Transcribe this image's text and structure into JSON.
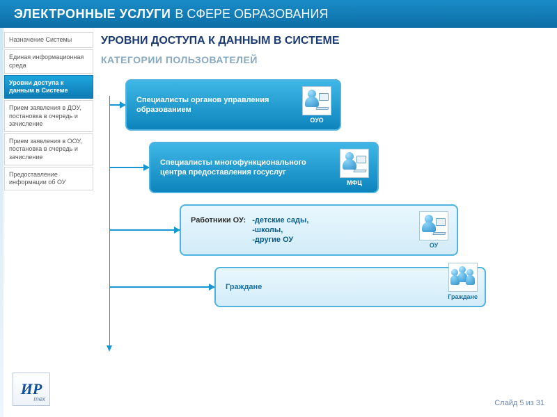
{
  "header": {
    "title_bold": "ЭЛЕКТРОННЫЕ УСЛУГИ",
    "title_light": "В СФЕРЕ ОБРАЗОВАНИЯ"
  },
  "sidebar": {
    "items": [
      {
        "label": "Назначение Системы"
      },
      {
        "label": "Единая информационная среда"
      },
      {
        "label": "Уровни доступа к данным в Системе"
      },
      {
        "label": "Прием заявления в ДОУ, постановка в очередь и зачисление"
      },
      {
        "label": "Прием заявления в ООУ, постановка в очередь и зачисление"
      },
      {
        "label": "Предоставление информации об ОУ"
      }
    ],
    "active_index": 2
  },
  "main": {
    "title": "УРОВНИ ДОСТУПА К ДАННЫМ В СИСТЕМЕ",
    "subtitle": "КАТЕГОРИИ ПОЛЬЗОВАТЕЛЕЙ"
  },
  "cards": [
    {
      "text": "Специалисты органов управления образованием",
      "tag": "ОУО",
      "style": "dark",
      "icon": "person-pc"
    },
    {
      "text": "Специалисты многофункционального центра предоставления госуслуг",
      "tag": "МФЦ",
      "style": "dark",
      "icon": "person-pc"
    },
    {
      "text": "Работники ОУ:",
      "list": "-детские сады,\n-школы,\n-другие ОУ",
      "tag": "ОУ",
      "style": "light",
      "icon": "person-pc"
    },
    {
      "text": "Граждане",
      "tag": "Граждане",
      "style": "light",
      "icon": "group"
    }
  ],
  "footer": {
    "logo_main": "ИР",
    "logo_sub": "тех",
    "slide": "Слайд 5 из 31"
  },
  "colors": {
    "header_grad_top": "#1a8cc8",
    "header_grad_bot": "#0d6ea5",
    "accent": "#1497d2",
    "card_border": "#4fb2df",
    "dark_grad_top": "#3fb7e6",
    "dark_grad_bot": "#0d84bc",
    "light_grad_top": "#e9f7fd",
    "light_grad_bot": "#d2ecf8",
    "title_color": "#1a3a73",
    "subtitle_color": "#87a8bf"
  }
}
